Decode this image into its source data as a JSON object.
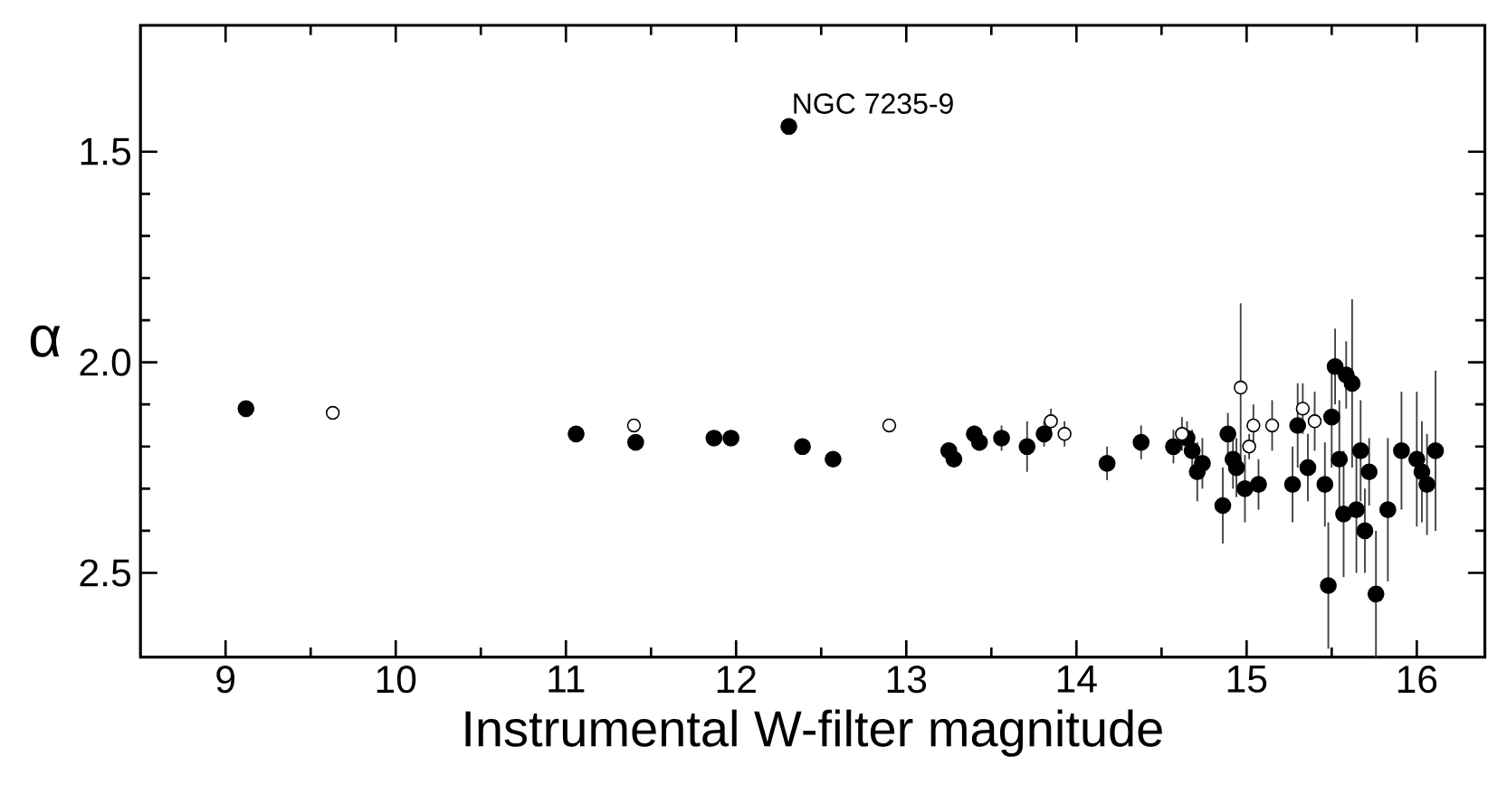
{
  "chart_data": {
    "type": "scatter",
    "xlabel": "Instrumental W-filter magnitude",
    "ylabel": "α",
    "xlim": [
      8.5,
      16.4
    ],
    "ylim": [
      2.7,
      1.2
    ],
    "xticks": [
      9,
      10,
      11,
      12,
      13,
      14,
      15,
      16
    ],
    "yticks": [
      {
        "value": 1.5,
        "label": "1.5"
      },
      {
        "value": 2.0,
        "label": "2.0"
      },
      {
        "value": 2.5,
        "label": "2.5"
      }
    ],
    "annotations": [
      {
        "text": "NGC 7235-9",
        "x": 12.31,
        "y": 1.44
      }
    ],
    "series": [
      {
        "color": "#000000",
        "x": [
          9.12,
          12.31,
          11.06,
          11.41,
          11.87,
          11.97,
          12.39,
          12.57,
          13.25,
          13.28,
          13.4,
          13.43,
          13.56,
          13.71,
          13.81,
          14.18,
          14.38,
          14.57,
          14.65,
          14.68,
          14.74,
          14.71,
          14.86,
          14.89,
          14.92,
          14.94,
          14.99,
          15.07,
          15.27,
          15.3,
          15.36,
          15.46,
          15.48,
          15.5,
          15.52,
          15.545,
          15.57,
          15.585,
          15.62,
          15.645,
          15.67,
          15.695,
          15.72,
          15.76,
          15.83,
          15.91,
          16.0,
          16.03,
          16.06,
          16.11
        ],
        "values": [
          2.11,
          1.44,
          2.17,
          2.19,
          2.18,
          2.18,
          2.2,
          2.23,
          2.21,
          2.23,
          2.17,
          2.19,
          2.18,
          2.2,
          2.17,
          2.24,
          2.19,
          2.2,
          2.18,
          2.21,
          2.24,
          2.26,
          2.34,
          2.17,
          2.23,
          2.25,
          2.3,
          2.29,
          2.29,
          2.15,
          2.25,
          2.29,
          2.53,
          2.13,
          2.01,
          2.23,
          2.36,
          2.03,
          2.05,
          2.35,
          2.21,
          2.4,
          2.26,
          2.55,
          2.35,
          2.21,
          2.23,
          2.26,
          2.29,
          2.21
        ],
        "errors": [
          null,
          null,
          null,
          null,
          null,
          null,
          null,
          null,
          0.01,
          0.02,
          0.02,
          0.02,
          0.03,
          0.06,
          0.03,
          0.04,
          0.04,
          0.04,
          0.04,
          0.05,
          0.06,
          0.07,
          0.09,
          0.05,
          0.07,
          0.07,
          0.08,
          0.06,
          0.09,
          0.1,
          0.08,
          0.1,
          0.15,
          0.12,
          0.09,
          0.14,
          0.15,
          0.08,
          0.2,
          0.15,
          0.12,
          0.1,
          0.08,
          0.15,
          0.17,
          0.14,
          0.16,
          0.12,
          0.12,
          0.19
        ]
      },
      {
        "color": "#000000",
        "x": [
          9.63,
          11.4,
          12.9,
          13.85,
          13.93,
          14.62,
          14.965,
          15.04,
          15.015,
          15.15,
          15.33,
          15.4
        ],
        "values": [
          2.12,
          2.15,
          2.15,
          2.14,
          2.17,
          2.17,
          2.06,
          2.15,
          2.2,
          2.15,
          2.11,
          2.14
        ],
        "errors": [
          0.01,
          0.01,
          0.01,
          0.03,
          0.03,
          0.04,
          0.2,
          0.05,
          0.03,
          0.06,
          0.06,
          0.07
        ]
      }
    ]
  }
}
